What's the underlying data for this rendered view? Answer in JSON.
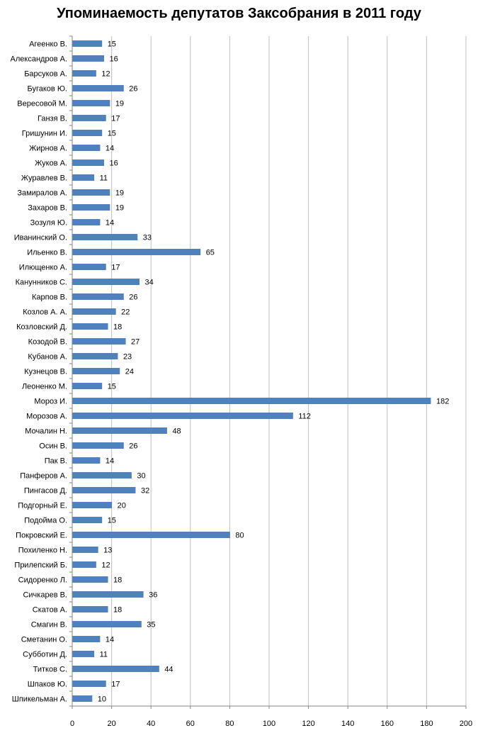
{
  "chart_data": {
    "type": "bar",
    "orientation": "horizontal",
    "title": "Упоминаемость депутатов Заксобрания в 2011 году",
    "categories": [
      "Агеенко В.",
      "Александров А.",
      "Барсуков А.",
      "Бугаков Ю.",
      "Вересовой М.",
      "Ганзя В.",
      "Гришунин И.",
      "Жирнов А.",
      "Жуков А.",
      "Журавлев В.",
      "Замиралов А.",
      "Захаров В.",
      "Зозуля Ю.",
      "Иванинский О.",
      "Ильенко В.",
      "Илющенко А.",
      "Канунников С.",
      "Карпов В.",
      "Козлов А. А.",
      "Козловский Д.",
      "Козодой В.",
      "Кубанов А.",
      "Кузнецов В.",
      "Леоненко М.",
      "Мороз И.",
      "Морозов А.",
      "Мочалин Н.",
      "Осин В.",
      "Пак В.",
      "Панферов А.",
      "Пингасов Д.",
      "Подгорный Е.",
      "Подойма О.",
      "Покровский Е.",
      "Похиленко Н.",
      "Прилепский Б.",
      "Сидоренко Л.",
      "Сичкарев В.",
      "Скатов А.",
      "Смагин В.",
      "Сметанин О.",
      "Субботин Д.",
      "Титков С.",
      "Шпаков Ю.",
      "Шпикельман А."
    ],
    "values": [
      15,
      16,
      12,
      26,
      19,
      17,
      15,
      14,
      16,
      11,
      19,
      19,
      14,
      33,
      65,
      17,
      34,
      26,
      22,
      18,
      27,
      23,
      24,
      15,
      182,
      112,
      48,
      26,
      14,
      30,
      32,
      20,
      15,
      80,
      13,
      12,
      18,
      36,
      18,
      35,
      14,
      11,
      44,
      17,
      10
    ],
    "xlim": [
      0,
      200
    ],
    "xticks": [
      0,
      20,
      40,
      60,
      80,
      100,
      120,
      140,
      160,
      180,
      200
    ],
    "grid": true,
    "bar_color": "#4F81BD",
    "grid_color": "#BFBFBF",
    "data_labels": true
  }
}
